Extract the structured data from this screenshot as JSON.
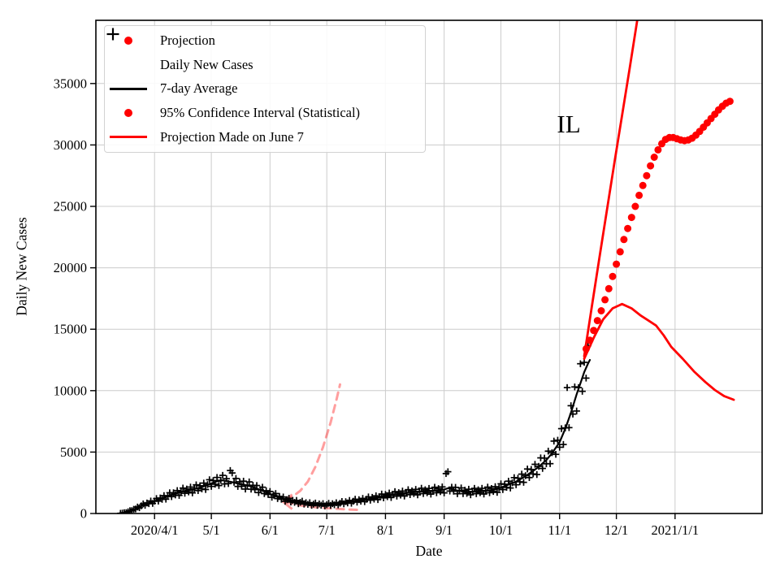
{
  "figure": {
    "xlabel": "Date",
    "ylabel": "Daily New Cases",
    "annotation": "IL"
  },
  "colors": {
    "projection_red": "#ff0000",
    "data_black": "#000000",
    "faded_projection_pink": "rgba(255,0,0,0.38)",
    "grid_gray": "#cccccc",
    "legend_border": "#d2d2d2"
  },
  "legend": {
    "items": [
      {
        "label": "Projection",
        "marker": "dot",
        "color": "#ff0000"
      },
      {
        "label": "Daily New Cases",
        "marker": "plus",
        "color": "#000000"
      },
      {
        "label": "7-day Average",
        "marker": "line",
        "color": "#000000"
      },
      {
        "label": "95% Confidence Interval (Statistical)",
        "marker": "dot",
        "color": "#ff0000"
      },
      {
        "label": "Projection Made on June 7",
        "marker": "line",
        "color": "#ff0000"
      }
    ]
  },
  "chart_data": {
    "type": "line",
    "title": "",
    "xlabel": "Date",
    "ylabel": "Daily New Cases",
    "annotation": {
      "text": "IL",
      "day": 248,
      "value": 31600
    },
    "x_unit": "days since 2020-03-01",
    "xlim_days": [
      0,
      352
    ],
    "ylim": [
      0,
      40145
    ],
    "grid": true,
    "x_ticks": [
      {
        "day": 31,
        "label": "2020/4/1"
      },
      {
        "day": 61,
        "label": "5/1"
      },
      {
        "day": 92,
        "label": "6/1"
      },
      {
        "day": 122,
        "label": "7/1"
      },
      {
        "day": 153,
        "label": "8/1"
      },
      {
        "day": 184,
        "label": "9/1"
      },
      {
        "day": 214,
        "label": "10/1"
      },
      {
        "day": 245,
        "label": "11/1"
      },
      {
        "day": 275,
        "label": "12/1"
      },
      {
        "day": 306,
        "label": "2021/1/1"
      }
    ],
    "y_ticks": [
      0,
      5000,
      10000,
      15000,
      20000,
      25000,
      30000,
      35000
    ],
    "series": [
      {
        "name": "Projection Made on June 7 (upper bound)",
        "type": "dashed",
        "color": "rgba(255,0,0,0.38)",
        "lw": 3,
        "dash": "9 7",
        "arrow_tip": [
          99,
          950
        ],
        "points": [
          [
            100,
            1050
          ],
          [
            104,
            1380
          ],
          [
            108,
            1850
          ],
          [
            112,
            2600
          ],
          [
            116,
            3800
          ],
          [
            120,
            5400
          ],
          [
            124,
            7400
          ],
          [
            127,
            9200
          ],
          [
            129,
            10500
          ]
        ]
      },
      {
        "name": "Projection Made on June 7 (lower bound)",
        "type": "dashed",
        "color": "rgba(255,0,0,0.38)",
        "lw": 3,
        "dash": "9 7",
        "points": [
          [
            100,
            950
          ],
          [
            105,
            740
          ],
          [
            110,
            610
          ],
          [
            115,
            520
          ],
          [
            121,
            450
          ],
          [
            127,
            390
          ],
          [
            133,
            330
          ],
          [
            139,
            290
          ]
        ]
      },
      {
        "name": "Daily New Cases",
        "type": "scatter-plus",
        "color": "#000000",
        "half": 4.2,
        "lw": 1.7,
        "day_range": [
          13,
          260
        ],
        "weekly_factors": [
          1.07,
          0.93,
          1.12,
          0.86,
          1.01,
          1.15,
          0.9
        ],
        "outliers": {
          "71": 3500,
          "72": 3300,
          "185": 3250,
          "186": 3400,
          "249": 10250
        },
        "base": "7-day Average"
      },
      {
        "name": "7-day Average",
        "type": "line",
        "color": "#000000",
        "lw": 2.2,
        "points": [
          [
            13,
            15
          ],
          [
            16,
            80
          ],
          [
            20,
            320
          ],
          [
            24,
            620
          ],
          [
            28,
            860
          ],
          [
            31,
            1000
          ],
          [
            36,
            1300
          ],
          [
            41,
            1580
          ],
          [
            46,
            1800
          ],
          [
            51,
            1950
          ],
          [
            56,
            2150
          ],
          [
            61,
            2450
          ],
          [
            64,
            2620
          ],
          [
            67,
            2700
          ],
          [
            70,
            2620
          ],
          [
            74,
            2480
          ],
          [
            78,
            2350
          ],
          [
            82,
            2200
          ],
          [
            86,
            1980
          ],
          [
            89,
            1800
          ],
          [
            92,
            1600
          ],
          [
            96,
            1350
          ],
          [
            100,
            1150
          ],
          [
            104,
            1000
          ],
          [
            108,
            900
          ],
          [
            112,
            800
          ],
          [
            116,
            740
          ],
          [
            122,
            710
          ],
          [
            126,
            760
          ],
          [
            130,
            850
          ],
          [
            134,
            950
          ],
          [
            138,
            1030
          ],
          [
            142,
            1120
          ],
          [
            146,
            1230
          ],
          [
            150,
            1340
          ],
          [
            153,
            1450
          ],
          [
            158,
            1550
          ],
          [
            163,
            1650
          ],
          [
            168,
            1740
          ],
          [
            173,
            1800
          ],
          [
            178,
            1840
          ],
          [
            184,
            1950
          ],
          [
            186,
            2060
          ],
          [
            188,
            2000
          ],
          [
            190,
            1900
          ],
          [
            193,
            1810
          ],
          [
            196,
            1760
          ],
          [
            200,
            1780
          ],
          [
            204,
            1830
          ],
          [
            208,
            1880
          ],
          [
            211,
            1950
          ],
          [
            214,
            2100
          ],
          [
            218,
            2350
          ],
          [
            222,
            2600
          ],
          [
            226,
            2950
          ],
          [
            230,
            3350
          ],
          [
            234,
            3800
          ],
          [
            238,
            4350
          ],
          [
            241,
            4900
          ],
          [
            245,
            5800
          ],
          [
            248,
            6900
          ],
          [
            251,
            8200
          ],
          [
            254,
            9700
          ],
          [
            256,
            10600
          ],
          [
            258,
            11500
          ],
          [
            260,
            12200
          ],
          [
            261,
            12500
          ]
        ]
      },
      {
        "name": "95% Confidence Interval upper (Statistical)",
        "type": "line",
        "color": "#ff0000",
        "lw": 2.8,
        "points": [
          [
            258,
            12800
          ],
          [
            262,
            16800
          ],
          [
            266,
            20800
          ],
          [
            270,
            24700
          ],
          [
            274,
            28600
          ],
          [
            278,
            32400
          ],
          [
            282,
            36200
          ],
          [
            286,
            40150
          ],
          [
            288,
            42000
          ]
        ]
      },
      {
        "name": "95% Confidence Interval lower (Statistical)",
        "type": "line",
        "color": "#ff0000",
        "lw": 2.8,
        "points": [
          [
            258,
            12600
          ],
          [
            263,
            14300
          ],
          [
            268,
            15800
          ],
          [
            273,
            16700
          ],
          [
            278,
            17050
          ],
          [
            283,
            16700
          ],
          [
            288,
            16100
          ],
          [
            292,
            15700
          ],
          [
            296,
            15300
          ],
          [
            300,
            14500
          ],
          [
            304,
            13560
          ],
          [
            310,
            12600
          ],
          [
            316,
            11570
          ],
          [
            322,
            10700
          ],
          [
            327,
            10050
          ],
          [
            332,
            9550
          ],
          [
            337,
            9260
          ]
        ]
      },
      {
        "name": "Projection",
        "type": "scatter-dots",
        "color": "#ff0000",
        "r": 4.5,
        "points": [
          [
            259,
            13400
          ],
          [
            261,
            14100
          ],
          [
            263,
            14900
          ],
          [
            265,
            15700
          ],
          [
            267,
            16500
          ],
          [
            269,
            17400
          ],
          [
            271,
            18300
          ],
          [
            273,
            19300
          ],
          [
            275,
            20300
          ],
          [
            277,
            21300
          ],
          [
            279,
            22300
          ],
          [
            281,
            23200
          ],
          [
            283,
            24100
          ],
          [
            285,
            25000
          ],
          [
            287,
            25900
          ],
          [
            289,
            26700
          ],
          [
            291,
            27500
          ],
          [
            293,
            28300
          ],
          [
            295,
            29000
          ],
          [
            297,
            29600
          ],
          [
            299,
            30100
          ],
          [
            301,
            30450
          ],
          [
            303,
            30600
          ],
          [
            305,
            30600
          ],
          [
            307,
            30500
          ],
          [
            309,
            30400
          ],
          [
            311,
            30350
          ],
          [
            313,
            30400
          ],
          [
            315,
            30550
          ],
          [
            317,
            30800
          ],
          [
            319,
            31100
          ],
          [
            321,
            31450
          ],
          [
            323,
            31800
          ],
          [
            325,
            32150
          ],
          [
            327,
            32500
          ],
          [
            329,
            32850
          ],
          [
            331,
            33150
          ],
          [
            333,
            33400
          ],
          [
            335,
            33550
          ]
        ]
      }
    ]
  }
}
